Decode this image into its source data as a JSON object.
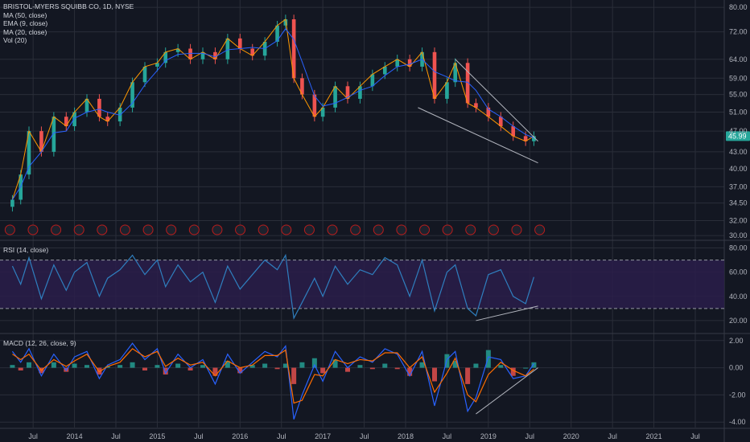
{
  "header": {
    "symbol": "BRISTOL-MYERS SQUIBB CO, 1D, NYSE",
    "indicators": [
      "MA (50, close)",
      "EMA (9, close)",
      "MA (20, close)",
      "Vol (20)"
    ]
  },
  "rsi_panel": {
    "label": "RSI (14, close)"
  },
  "macd_panel": {
    "label": "MACD (12, 26, close, 9)"
  },
  "colors": {
    "background": "#131722",
    "grid": "#2a2e39",
    "candle_up": "#26a69a",
    "candle_down": "#ef5350",
    "ma50": "#2962ff",
    "ema9": "#ff9800",
    "ma20": "#f44336",
    "rsi_line": "#2f7fbf",
    "rsi_band": "#2a1d4a",
    "macd_line": "#2962ff",
    "signal_line": "#ff6d00",
    "price_badge": "#26a69a",
    "earnings_marker": "#b71c1c",
    "trendline": "#b2b5be"
  },
  "chart_data": [
    {
      "type": "line",
      "panel": "price",
      "title": "BRISTOL-MYERS SQUIBB CO, 1D, NYSE",
      "y_axis_ticks": [
        "80.00",
        "72.00",
        "64.00",
        "59.00",
        "55.00",
        "51.00",
        "47.00",
        "43.00",
        "40.00",
        "37.00",
        "34.50",
        "32.00",
        "30.00"
      ],
      "y_scale": "log",
      "ylim": [
        29.5,
        82
      ],
      "last_price": "45.99",
      "x": [
        2013.25,
        2013.35,
        2013.45,
        2013.6,
        2013.75,
        2013.9,
        2014.0,
        2014.15,
        2014.3,
        2014.4,
        2014.55,
        2014.7,
        2014.85,
        2015.0,
        2015.1,
        2015.25,
        2015.4,
        2015.55,
        2015.7,
        2015.85,
        2016.0,
        2016.15,
        2016.3,
        2016.45,
        2016.55,
        2016.65,
        2016.75,
        2016.9,
        2017.0,
        2017.15,
        2017.3,
        2017.45,
        2017.6,
        2017.75,
        2017.9,
        2018.05,
        2018.2,
        2018.35,
        2018.5,
        2018.6,
        2018.75,
        2018.85,
        2019.0,
        2019.15,
        2019.3,
        2019.45,
        2019.55
      ],
      "close": [
        35,
        39,
        47,
        43,
        50,
        48,
        51,
        54,
        50,
        49,
        52,
        58,
        62,
        63,
        66,
        67,
        64,
        66,
        64,
        70,
        67,
        65,
        69,
        74,
        76,
        59,
        55,
        50,
        52,
        57,
        54,
        57,
        60,
        62,
        64,
        62,
        66,
        54,
        58,
        63,
        53,
        52,
        50,
        48,
        46,
        45,
        46
      ],
      "trendlines": [
        {
          "from": [
            "2018.60",
            64
          ],
          "to": [
            "2019.60",
            45
          ]
        },
        {
          "from": [
            "2018.15",
            52
          ],
          "to": [
            "2019.60",
            41
          ]
        }
      ],
      "earnings_markers": 24
    },
    {
      "type": "line",
      "panel": "rsi",
      "title": "RSI (14, close)",
      "y_axis_ticks": [
        "80.00",
        "60.00",
        "40.00",
        "20.00"
      ],
      "ylim": [
        10,
        85
      ],
      "bands": [
        30,
        70
      ],
      "x": [
        2013.25,
        2013.35,
        2013.45,
        2013.6,
        2013.75,
        2013.9,
        2014.0,
        2014.15,
        2014.3,
        2014.4,
        2014.55,
        2014.7,
        2014.85,
        2015.0,
        2015.1,
        2015.25,
        2015.4,
        2015.55,
        2015.7,
        2015.85,
        2016.0,
        2016.15,
        2016.3,
        2016.45,
        2016.55,
        2016.65,
        2016.75,
        2016.9,
        2017.0,
        2017.15,
        2017.3,
        2017.45,
        2017.6,
        2017.75,
        2017.9,
        2018.05,
        2018.2,
        2018.35,
        2018.5,
        2018.6,
        2018.75,
        2018.85,
        2019.0,
        2019.15,
        2019.3,
        2019.45,
        2019.55
      ],
      "values": [
        65,
        50,
        72,
        38,
        66,
        45,
        60,
        68,
        40,
        55,
        62,
        74,
        58,
        70,
        48,
        66,
        52,
        60,
        35,
        65,
        46,
        58,
        70,
        62,
        74,
        22,
        35,
        55,
        40,
        65,
        50,
        62,
        58,
        72,
        66,
        40,
        70,
        28,
        60,
        66,
        30,
        24,
        58,
        62,
        40,
        34,
        56
      ],
      "trendlines": [
        {
          "from": [
            "2018.85",
            20
          ],
          "to": [
            "2019.60",
            32
          ]
        }
      ]
    },
    {
      "type": "line",
      "panel": "macd",
      "title": "MACD (12, 26, close, 9)",
      "y_axis_ticks": [
        "2.00",
        "0.00",
        "-2.00",
        "-4.00"
      ],
      "ylim": [
        -4.4,
        2.4
      ],
      "x": [
        2013.25,
        2013.35,
        2013.45,
        2013.6,
        2013.75,
        2013.9,
        2014.0,
        2014.15,
        2014.3,
        2014.4,
        2014.55,
        2014.7,
        2014.85,
        2015.0,
        2015.1,
        2015.25,
        2015.4,
        2015.55,
        2015.7,
        2015.85,
        2016.0,
        2016.15,
        2016.3,
        2016.45,
        2016.55,
        2016.65,
        2016.75,
        2016.9,
        2017.0,
        2017.15,
        2017.3,
        2017.45,
        2017.6,
        2017.75,
        2017.9,
        2018.05,
        2018.2,
        2018.35,
        2018.5,
        2018.6,
        2018.75,
        2018.85,
        2019.0,
        2019.15,
        2019.3,
        2019.45,
        2019.55
      ],
      "macd": [
        1.2,
        0.4,
        1.4,
        -0.6,
        1.0,
        -0.2,
        0.8,
        1.2,
        -0.8,
        0.2,
        0.6,
        1.8,
        0.6,
        1.4,
        -0.4,
        1.0,
        0.0,
        0.6,
        -1.2,
        1.0,
        -0.4,
        0.4,
        1.2,
        0.8,
        1.6,
        -3.8,
        -2.0,
        0.2,
        -1.0,
        1.2,
        0.0,
        0.8,
        0.4,
        1.4,
        1.0,
        -0.6,
        1.2,
        -2.8,
        0.6,
        1.2,
        -3.2,
        -2.2,
        0.8,
        0.6,
        -0.8,
        -0.6,
        0.3
      ],
      "signal": [
        1.0,
        0.6,
        1.0,
        -0.2,
        0.6,
        0.1,
        0.5,
        1.0,
        -0.3,
        0.1,
        0.4,
        1.4,
        0.8,
        1.2,
        0.1,
        0.7,
        0.2,
        0.4,
        -0.6,
        0.5,
        0.0,
        0.2,
        0.9,
        0.9,
        1.3,
        -2.6,
        -2.4,
        -0.5,
        -0.6,
        0.6,
        0.3,
        0.6,
        0.5,
        1.1,
        1.1,
        0.0,
        0.8,
        -1.8,
        -0.4,
        0.7,
        -2.0,
        -2.5,
        -0.5,
        0.4,
        -0.2,
        -0.6,
        -0.1
      ],
      "trendlines": [
        {
          "from": [
            "2018.85",
            -3.4
          ],
          "to": [
            "2019.60",
            0.0
          ]
        }
      ]
    },
    {
      "type": "axis",
      "panel": "time",
      "x_ticks": [
        {
          "label": "Jul",
          "t": 2013.5
        },
        {
          "label": "2014",
          "t": 2014.0
        },
        {
          "label": "Jul",
          "t": 2014.5
        },
        {
          "label": "2015",
          "t": 2015.0
        },
        {
          "label": "Jul",
          "t": 2015.5
        },
        {
          "label": "2016",
          "t": 2016.0
        },
        {
          "label": "Jul",
          "t": 2016.5
        },
        {
          "label": "2017",
          "t": 2017.0
        },
        {
          "label": "Jul",
          "t": 2017.5
        },
        {
          "label": "2018",
          "t": 2018.0
        },
        {
          "label": "Jul",
          "t": 2018.5
        },
        {
          "label": "2019",
          "t": 2019.0
        },
        {
          "label": "Jul",
          "t": 2019.5
        },
        {
          "label": "2020",
          "t": 2020.0
        },
        {
          "label": "Jul",
          "t": 2020.5
        },
        {
          "label": "2021",
          "t": 2021.0
        },
        {
          "label": "Jul",
          "t": 2021.5
        }
      ],
      "xlim": [
        2013.1,
        2021.85
      ]
    }
  ]
}
